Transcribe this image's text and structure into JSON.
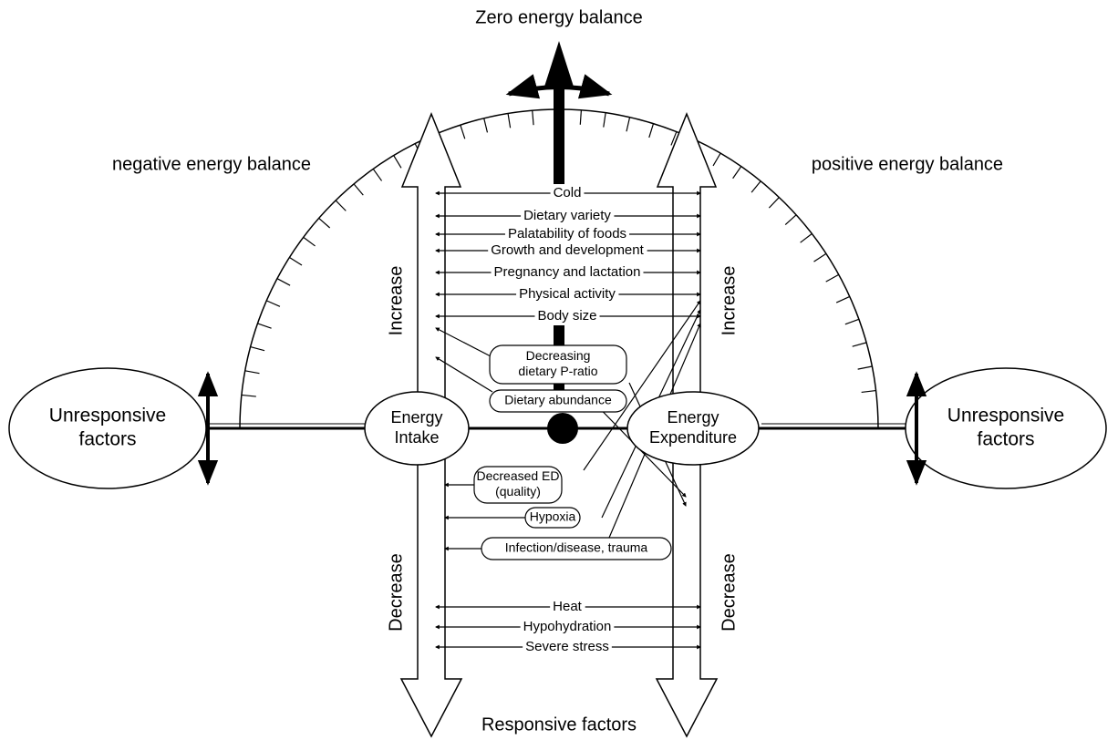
{
  "title": "Zero energy balance",
  "negative_label": "negative energy balance",
  "positive_label": "positive energy balance",
  "unresponsive": [
    "Unresponsive",
    "factors"
  ],
  "energy_intake": [
    "Energy",
    "Intake"
  ],
  "energy_expenditure": [
    "Energy",
    "Expenditure"
  ],
  "increase": "Increase",
  "decrease": "Decrease",
  "increase_factors": [
    "Cold",
    "Dietary variety",
    "Palatability of foods",
    "Growth and development",
    "Pregnancy and lactation",
    "Physical activity",
    "Body size"
  ],
  "decrease_factors": [
    "Heat",
    "Hypohydration",
    "Severe stress"
  ],
  "boxes": [
    [
      "Decreasing",
      "dietary P-ratio"
    ],
    [
      "Dietary abundance"
    ],
    [
      "Decreased ED",
      "(quality)"
    ],
    [
      "Hypoxia"
    ],
    [
      "Infection/disease, trauma"
    ]
  ],
  "footer": "Responsive factors"
}
